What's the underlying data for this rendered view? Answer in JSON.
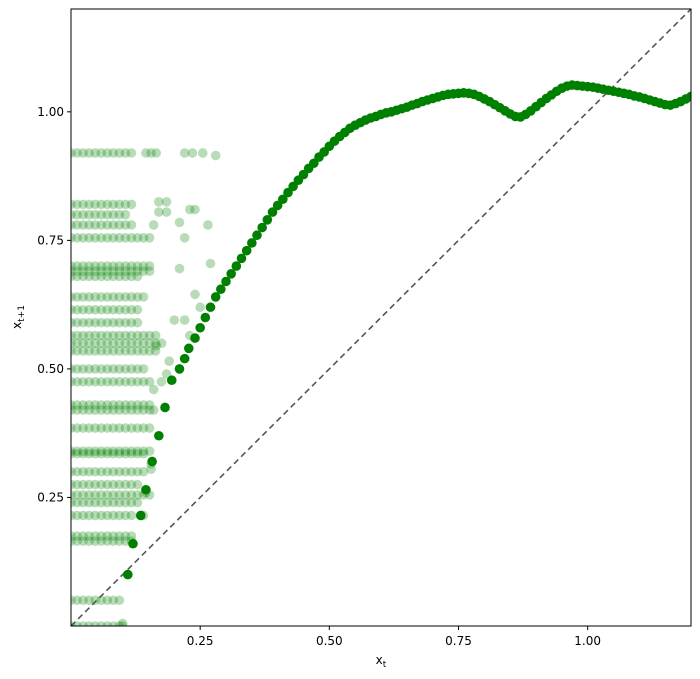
{
  "chart_data": {
    "type": "scatter",
    "title": "",
    "xlabel": "x",
    "xlabel_sub": "t",
    "ylabel": "x",
    "ylabel_sub": "t+1",
    "xlim": [
      0.0,
      1.2
    ],
    "ylim": [
      0.0,
      1.2
    ],
    "grid": false,
    "x_ticks": [
      0.25,
      0.5,
      0.75,
      1.0
    ],
    "y_ticks": [
      0.25,
      0.5,
      0.75,
      1.0
    ],
    "x_tick_labels": [
      "0.25",
      "0.50",
      "0.75",
      "1.00"
    ],
    "y_tick_labels": [
      "0.25",
      "0.50",
      "0.75",
      "1.00"
    ],
    "reference_line": {
      "type": "identity",
      "style": "dashed",
      "color": "#555555"
    },
    "colors": {
      "points": "#008000",
      "faint_alpha": 0.28
    },
    "faint_points": {
      "rows": [
        0.92,
        0.82,
        0.8,
        0.78,
        0.755,
        0.7,
        0.69,
        0.68,
        0.64,
        0.615,
        0.59,
        0.565,
        0.55,
        0.535,
        0.5,
        0.475,
        0.43,
        0.42,
        0.385,
        0.34,
        0.335,
        0.3,
        0.275,
        0.255,
        0.24,
        0.215,
        0.175,
        0.165,
        0.05,
        0.0
      ],
      "row_lengths": [
        0.12,
        0.12,
        0.11,
        0.12,
        0.16,
        0.16,
        0.16,
        0.13,
        0.15,
        0.14,
        0.14,
        0.17,
        0.18,
        0.17,
        0.15,
        0.16,
        0.16,
        0.16,
        0.16,
        0.16,
        0.15,
        0.15,
        0.14,
        0.16,
        0.13,
        0.12,
        0.12,
        0.12,
        0.1,
        0.1
      ],
      "x_step": 0.0117,
      "extra": [
        {
          "x": 0.145,
          "y": 0.92
        },
        {
          "x": 0.155,
          "y": 0.92
        },
        {
          "x": 0.165,
          "y": 0.92
        },
        {
          "x": 0.22,
          "y": 0.92
        },
        {
          "x": 0.235,
          "y": 0.92
        },
        {
          "x": 0.255,
          "y": 0.92
        },
        {
          "x": 0.28,
          "y": 0.915
        },
        {
          "x": 0.17,
          "y": 0.825
        },
        {
          "x": 0.185,
          "y": 0.825
        },
        {
          "x": 0.17,
          "y": 0.805
        },
        {
          "x": 0.185,
          "y": 0.805
        },
        {
          "x": 0.23,
          "y": 0.81
        },
        {
          "x": 0.24,
          "y": 0.81
        },
        {
          "x": 0.16,
          "y": 0.78
        },
        {
          "x": 0.21,
          "y": 0.785
        },
        {
          "x": 0.265,
          "y": 0.78
        },
        {
          "x": 0.22,
          "y": 0.755
        },
        {
          "x": 0.21,
          "y": 0.695
        },
        {
          "x": 0.27,
          "y": 0.705
        },
        {
          "x": 0.24,
          "y": 0.645
        },
        {
          "x": 0.25,
          "y": 0.62
        },
        {
          "x": 0.22,
          "y": 0.595
        },
        {
          "x": 0.2,
          "y": 0.595
        },
        {
          "x": 0.23,
          "y": 0.565
        },
        {
          "x": 0.165,
          "y": 0.545
        },
        {
          "x": 0.19,
          "y": 0.515
        },
        {
          "x": 0.175,
          "y": 0.475
        },
        {
          "x": 0.185,
          "y": 0.49
        },
        {
          "x": 0.16,
          "y": 0.46
        },
        {
          "x": 0.16,
          "y": 0.42
        },
        {
          "x": 0.155,
          "y": 0.315
        },
        {
          "x": 0.155,
          "y": 0.305
        },
        {
          "x": 0.145,
          "y": 0.26
        },
        {
          "x": 0.14,
          "y": 0.215
        },
        {
          "x": 0.1,
          "y": 0.0
        },
        {
          "x": 0.1,
          "y": 0.005
        }
      ]
    },
    "main_curve": [
      [
        0.11,
        0.1
      ],
      [
        0.12,
        0.16
      ],
      [
        0.135,
        0.215
      ],
      [
        0.145,
        0.265
      ],
      [
        0.157,
        0.32
      ],
      [
        0.17,
        0.37
      ],
      [
        0.182,
        0.425
      ],
      [
        0.195,
        0.478
      ],
      [
        0.21,
        0.5
      ],
      [
        0.22,
        0.52
      ],
      [
        0.228,
        0.54
      ],
      [
        0.24,
        0.56
      ],
      [
        0.25,
        0.58
      ],
      [
        0.26,
        0.6
      ],
      [
        0.27,
        0.62
      ],
      [
        0.28,
        0.64
      ],
      [
        0.29,
        0.655
      ],
      [
        0.3,
        0.67
      ],
      [
        0.31,
        0.685
      ],
      [
        0.32,
        0.7
      ],
      [
        0.33,
        0.715
      ],
      [
        0.34,
        0.73
      ],
      [
        0.35,
        0.745
      ],
      [
        0.36,
        0.76
      ],
      [
        0.37,
        0.775
      ],
      [
        0.38,
        0.79
      ],
      [
        0.39,
        0.805
      ],
      [
        0.4,
        0.818
      ],
      [
        0.41,
        0.83
      ],
      [
        0.42,
        0.843
      ],
      [
        0.43,
        0.855
      ],
      [
        0.44,
        0.867
      ],
      [
        0.45,
        0.878
      ],
      [
        0.46,
        0.89
      ],
      [
        0.47,
        0.9
      ],
      [
        0.48,
        0.912
      ],
      [
        0.49,
        0.922
      ],
      [
        0.5,
        0.933
      ],
      [
        0.51,
        0.943
      ],
      [
        0.52,
        0.952
      ],
      [
        0.53,
        0.96
      ],
      [
        0.54,
        0.968
      ],
      [
        0.55,
        0.974
      ],
      [
        0.56,
        0.979
      ],
      [
        0.57,
        0.984
      ],
      [
        0.58,
        0.988
      ],
      [
        0.59,
        0.991
      ],
      [
        0.6,
        0.995
      ],
      [
        0.61,
        0.998
      ],
      [
        0.62,
        1.0
      ],
      [
        0.63,
        1.003
      ],
      [
        0.64,
        1.006
      ],
      [
        0.65,
        1.009
      ],
      [
        0.66,
        1.013
      ],
      [
        0.67,
        1.016
      ],
      [
        0.68,
        1.02
      ],
      [
        0.69,
        1.023
      ],
      [
        0.7,
        1.026
      ],
      [
        0.71,
        1.029
      ],
      [
        0.72,
        1.032
      ],
      [
        0.73,
        1.034
      ],
      [
        0.74,
        1.035
      ],
      [
        0.75,
        1.036
      ],
      [
        0.76,
        1.037
      ],
      [
        0.77,
        1.036
      ],
      [
        0.78,
        1.034
      ],
      [
        0.79,
        1.03
      ],
      [
        0.8,
        1.025
      ],
      [
        0.81,
        1.02
      ],
      [
        0.82,
        1.014
      ],
      [
        0.83,
        1.008
      ],
      [
        0.84,
        1.002
      ],
      [
        0.85,
        0.996
      ],
      [
        0.86,
        0.991
      ],
      [
        0.87,
        0.99
      ],
      [
        0.88,
        0.995
      ],
      [
        0.89,
        1.002
      ],
      [
        0.9,
        1.01
      ],
      [
        0.91,
        1.018
      ],
      [
        0.92,
        1.026
      ],
      [
        0.93,
        1.033
      ],
      [
        0.94,
        1.04
      ],
      [
        0.95,
        1.046
      ],
      [
        0.96,
        1.05
      ],
      [
        0.97,
        1.052
      ],
      [
        0.98,
        1.051
      ],
      [
        0.99,
        1.05
      ],
      [
        1.0,
        1.049
      ],
      [
        1.01,
        1.048
      ],
      [
        1.02,
        1.046
      ],
      [
        1.03,
        1.044
      ],
      [
        1.04,
        1.042
      ],
      [
        1.05,
        1.04
      ],
      [
        1.06,
        1.038
      ],
      [
        1.07,
        1.036
      ],
      [
        1.08,
        1.034
      ],
      [
        1.09,
        1.031
      ],
      [
        1.1,
        1.029
      ],
      [
        1.11,
        1.026
      ],
      [
        1.12,
        1.023
      ],
      [
        1.13,
        1.02
      ],
      [
        1.14,
        1.017
      ],
      [
        1.15,
        1.014
      ],
      [
        1.16,
        1.013
      ],
      [
        1.17,
        1.016
      ],
      [
        1.18,
        1.02
      ],
      [
        1.19,
        1.025
      ],
      [
        1.2,
        1.03
      ]
    ]
  }
}
